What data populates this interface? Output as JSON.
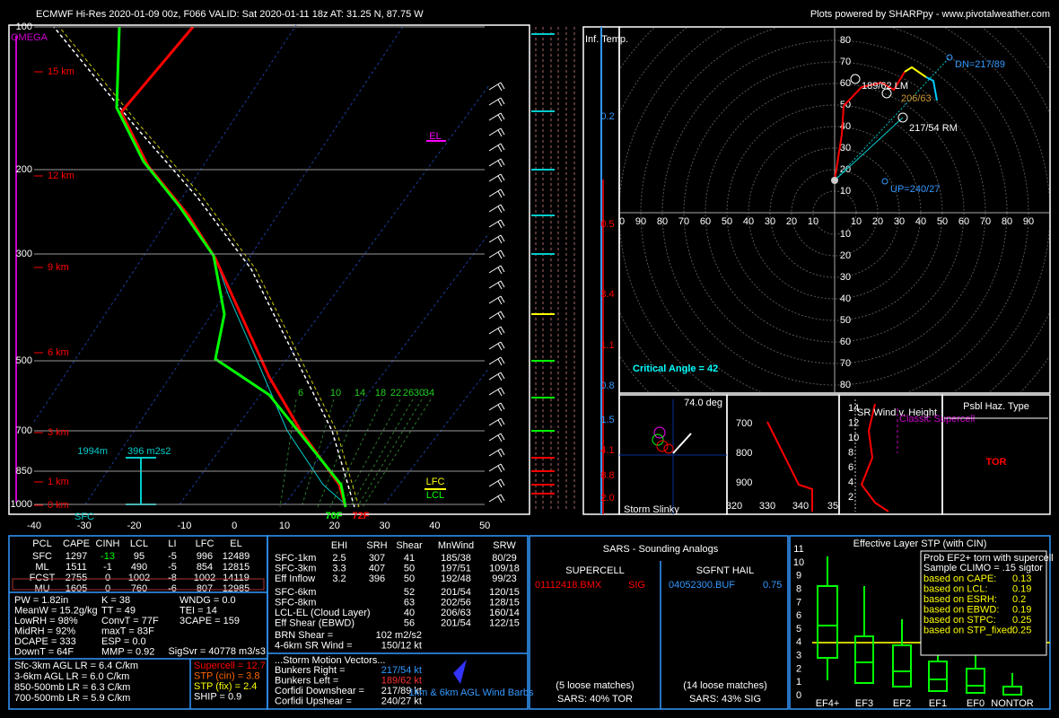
{
  "header": {
    "left": "ECMWF Hi-Res 2020-01-09 00z, F066    VALID: Sat 2020-01-11 18z    AT: 31.25 N, 87.75 W",
    "right": "Plots powered by SHARPpy - www.pivotalweather.com"
  },
  "skewt": {
    "omega": "OMEGA",
    "pressures": [
      "100",
      "200",
      "300",
      "500",
      "700",
      "850",
      "1000"
    ],
    "heights": [
      "15 km",
      "12 km",
      "9 km",
      "6 km",
      "3 km",
      "1 km",
      "0 km"
    ],
    "temps": [
      "-40",
      "-30",
      "-20",
      "-10",
      "0",
      "10",
      "20",
      "30",
      "40",
      "50"
    ],
    "mixing": [
      "6",
      "10",
      "14",
      "18",
      "22",
      "26",
      "30",
      "34"
    ],
    "el": "EL",
    "lfc": "LFC",
    "lcl": "LCL",
    "eff_top": "1994m",
    "eff_srh": "396 m2s2",
    "sfc": "SFC",
    "dewpoint": "70F",
    "temp": "72F"
  },
  "inferred": {
    "title": "Inf. Temp.",
    "labels": [
      "0.2",
      "0.5",
      "3.4",
      "1.1",
      "0.8",
      "1.5",
      "4.1",
      "8.8",
      "2.0"
    ]
  },
  "hodograph": {
    "left_ticks": [
      "00",
      "90",
      "80",
      "70",
      "60",
      "50",
      "40",
      "30",
      "20",
      "10"
    ],
    "right_ticks": [
      "10",
      "20",
      "30",
      "40",
      "50",
      "60",
      "70",
      "80",
      "90"
    ],
    "up_ticks": [
      "10",
      "20",
      "30",
      "40",
      "50",
      "60",
      "70",
      "80"
    ],
    "down_ticks": [
      "10",
      "20",
      "30",
      "40",
      "50",
      "60",
      "70",
      "80"
    ],
    "dn": "DN=217/89",
    "lm": "189/62 LM",
    "mean": "206/63",
    "rm": "217/54 RM",
    "up": "UP=240/27",
    "critical": "Critical Angle = 42"
  },
  "slinky": {
    "angle": "74.0 deg",
    "title": "Storm Slinky"
  },
  "thetae": {
    "pressures": [
      "700",
      "800",
      "900"
    ],
    "temps": [
      "320",
      "330",
      "340",
      "35"
    ]
  },
  "srwind": {
    "title": "SR Wind v. Height",
    "note": "Classic Supercell",
    "heights": [
      "14",
      "12",
      "10",
      "8",
      "6",
      "4",
      "2"
    ]
  },
  "hazard": {
    "title": "Psbl Haz. Type",
    "type": "TOR"
  },
  "thermo": {
    "header": [
      "PCL",
      "CAPE",
      "CINH",
      "LCL",
      "LI",
      "LFC",
      "EL"
    ],
    "rows": [
      [
        "SFC",
        "1297",
        "-13",
        "95",
        "-5",
        "996",
        "12489"
      ],
      [
        "ML",
        "1511",
        "-1",
        "490",
        "-5",
        "854",
        "12815"
      ],
      [
        "FCST",
        "2755",
        "0",
        "1002",
        "-8",
        "1002",
        "14119"
      ],
      [
        "MU",
        "1605",
        "0",
        "760",
        "-6",
        "807",
        "12985"
      ]
    ],
    "col1": [
      "PW = 1.82in",
      "MeanW = 15.2g/kg",
      "LowRH = 98%",
      "MidRH = 92%",
      "DCAPE = 333",
      "DownT = 64F"
    ],
    "col2": [
      "K = 38",
      "TT = 49",
      "ConvT = 77F",
      "maxT = 83F",
      "ESP = 0.0",
      "MMP = 0.92"
    ],
    "col3": [
      "WNDG = 0.0",
      "TEI = 14",
      "3CAPE = 159"
    ],
    "sigsvr": "SigSvr = 40778 m3/s3",
    "lapse": [
      "Sfc-3km AGL LR = 6.4 C/km",
      "3-6km AGL LR = 6.0 C/km",
      "850-500mb LR = 6.3 C/km",
      "700-500mb LR = 5.9 C/km"
    ],
    "severe": [
      "Supercell = 12.7",
      "STP (cin) = 3.8",
      "STP (fix) = 2.4",
      "SHIP = 0.9"
    ]
  },
  "kinematics": {
    "header": [
      "EHI",
      "SRH",
      "Shear",
      "MnWind",
      "SRW"
    ],
    "rows": [
      [
        "SFC-1km",
        "2.5",
        "307",
        "41",
        "185/38",
        "80/29"
      ],
      [
        "SFC-3km",
        "3.3",
        "407",
        "50",
        "197/51",
        "109/18"
      ],
      [
        "Eff Inflow",
        "3.2",
        "396",
        "50",
        "192/48",
        "99/23"
      ]
    ],
    "rows2": [
      [
        "SFC-6km",
        "52",
        "201/54",
        "120/15"
      ],
      [
        "SFC-8km",
        "63",
        "202/56",
        "128/15"
      ],
      [
        "LCL-EL (Cloud Layer)",
        "40",
        "206/63",
        "160/14"
      ],
      [
        "Eff Shear (EBWD)",
        "56",
        "201/54",
        "122/15"
      ]
    ],
    "extra": [
      [
        "BRN Shear =",
        "102 m2/s2"
      ],
      [
        "4-6km SR Wind =",
        "150/12 kt"
      ]
    ],
    "motion_title": "...Storm Motion Vectors...",
    "motion": [
      [
        "Bunkers Right =",
        "217/54 kt"
      ],
      [
        "Bunkers Left =",
        "189/62 kt"
      ],
      [
        "Corfidi Downshear =",
        "217/89 kt"
      ],
      [
        "Corfidi Upshear =",
        "240/27 kt"
      ]
    ],
    "barbs": "1km & 6km AGL Wind Barbs"
  },
  "sars": {
    "title": "SARS - Sounding Analogs",
    "supercell": "SUPERCELL",
    "hail": "SGFNT HAIL",
    "sc_match": "01112418.BMX",
    "sc_type": "SIG",
    "hail_match": "04052300.BUF",
    "hail_size": "0.75",
    "sc_loose": "(5 loose matches)",
    "sc_result": "SARS: 40% TOR",
    "hail_loose": "(14 loose matches)",
    "hail_result": "SARS: 43% SIG"
  },
  "stp": {
    "title": "Effective Layer STP (with CIN)",
    "yticks": [
      "0",
      "1",
      "2",
      "3",
      "4",
      "5",
      "6",
      "7",
      "8",
      "9",
      "10",
      "11"
    ],
    "categories": [
      "EF4+",
      "EF3",
      "EF2",
      "EF1",
      "EF0",
      "NONTOR"
    ],
    "prob_title": "Prob EF2+ torn with supercell",
    "climo": "Sample CLIMO = .15 sigtor",
    "probs": [
      [
        "based on CAPE:",
        "0.13"
      ],
      [
        "based on LCL:",
        "0.19"
      ],
      [
        "based on ESRH:",
        "0.2"
      ],
      [
        "based on EBWD:",
        "0.19"
      ],
      [
        "based on STPC:",
        "0.25"
      ],
      [
        "based on STP_fixed:",
        "0.25"
      ]
    ]
  }
}
